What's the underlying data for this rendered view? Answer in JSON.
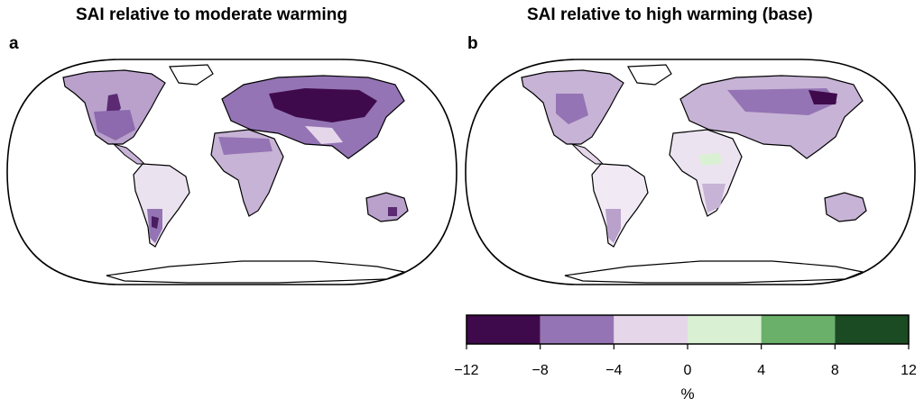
{
  "panels": [
    {
      "letter": "a",
      "title": "SAI relative to moderate warming"
    },
    {
      "letter": "b",
      "title": "SAI relative to high warming (base)"
    }
  ],
  "colorbar": {
    "bins": [
      {
        "min": -12,
        "max": -8,
        "color": "#3f0a4b"
      },
      {
        "min": -8,
        "max": -4,
        "color": "#9474b4"
      },
      {
        "min": -4,
        "max": 0,
        "color": "#e5d6ea"
      },
      {
        "min": 0,
        "max": 4,
        "color": "#daf0d3"
      },
      {
        "min": 4,
        "max": 8,
        "color": "#6ab06a"
      },
      {
        "min": 8,
        "max": 12,
        "color": "#1a4b22"
      }
    ],
    "ticks": [
      "−12",
      "−8",
      "−4",
      "0",
      "4",
      "8",
      "12"
    ],
    "unit": "%"
  }
}
